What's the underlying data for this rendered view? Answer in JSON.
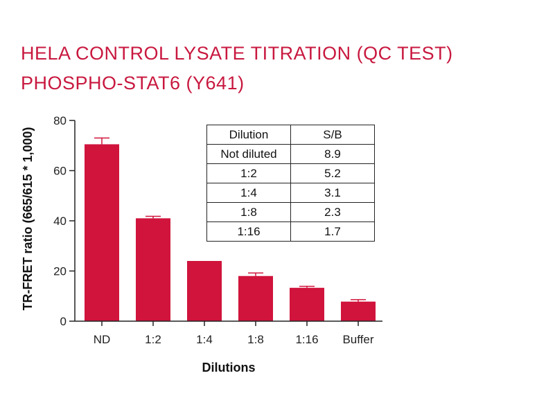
{
  "title_line1": "HELA CONTROL LYSATE TITRATION (QC TEST)",
  "title_line2": "PHOSPHO-STAT6 (Y641)",
  "colors": {
    "bar": "#d0143c",
    "title": "#c8183f",
    "axis": "#222222"
  },
  "chart_data": {
    "type": "bar",
    "categories": [
      "ND",
      "1:2",
      "1:4",
      "1:8",
      "1:16",
      "Buffer"
    ],
    "values": [
      70.5,
      41,
      24,
      18,
      13.3,
      7.8
    ],
    "errors": [
      2.5,
      0.8,
      0,
      1.2,
      0.6,
      0.8
    ],
    "xlabel": "Dilutions",
    "ylabel": "TR-FRET ratio (665/615 * 1,000)",
    "ylim": [
      0,
      80
    ],
    "yticks": [
      "0",
      "20",
      "40",
      "60",
      "80"
    ],
    "grid": false,
    "inset_table": {
      "headers": [
        "Dilution",
        "S/B"
      ],
      "rows": [
        [
          "Not diluted",
          "8.9"
        ],
        [
          "1:2",
          "5.2"
        ],
        [
          "1:4",
          "3.1"
        ],
        [
          "1:8",
          "2.3"
        ],
        [
          "1:16",
          "1.7"
        ]
      ]
    }
  }
}
